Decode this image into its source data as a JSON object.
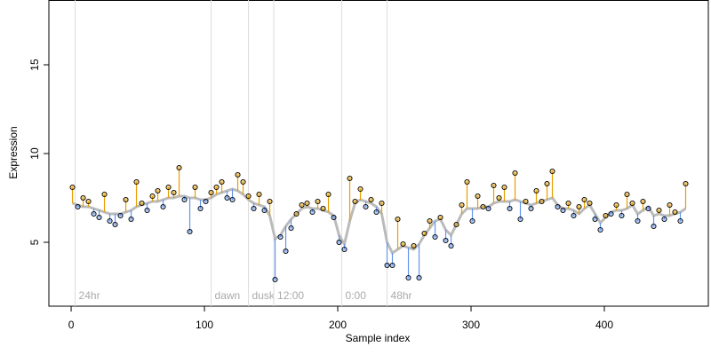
{
  "chart_data": {
    "type": "residual-scatter",
    "x_label": "Sample index",
    "y_label": "Expression",
    "x": [
      1,
      5,
      9,
      13,
      17,
      21,
      25,
      29,
      33,
      37,
      41,
      45,
      49,
      53,
      57,
      61,
      65,
      69,
      73,
      77,
      81,
      85,
      89,
      93,
      97,
      101,
      105,
      109,
      113,
      117,
      121,
      125,
      129,
      133,
      137,
      141,
      145,
      149,
      153,
      157,
      161,
      165,
      169,
      173,
      177,
      181,
      185,
      189,
      193,
      197,
      201,
      205,
      209,
      213,
      217,
      221,
      225,
      229,
      233,
      237,
      241,
      245,
      249,
      253,
      257,
      261,
      265,
      269,
      273,
      277,
      281,
      285,
      289,
      293,
      297,
      301,
      305,
      309,
      313,
      317,
      321,
      325,
      329,
      333,
      337,
      341,
      345,
      349,
      353,
      357,
      361,
      365,
      369,
      373,
      377,
      381,
      385,
      389,
      393,
      397,
      401,
      405,
      409,
      413,
      417,
      421,
      425,
      429,
      433,
      437,
      441,
      445,
      449,
      453,
      457,
      461
    ],
    "values": [
      8.1,
      7.0,
      7.5,
      7.3,
      6.6,
      6.4,
      7.7,
      6.2,
      6.0,
      6.5,
      7.4,
      6.3,
      8.4,
      7.2,
      6.8,
      7.6,
      7.9,
      7.0,
      8.1,
      7.8,
      9.2,
      7.4,
      5.6,
      8.1,
      6.9,
      7.3,
      7.8,
      8.1,
      8.4,
      7.5,
      7.4,
      8.8,
      8.4,
      7.6,
      6.9,
      7.7,
      6.8,
      7.3,
      2.9,
      5.3,
      4.5,
      5.8,
      6.6,
      7.1,
      7.2,
      6.7,
      7.3,
      6.9,
      7.7,
      6.4,
      5.0,
      4.6,
      8.6,
      7.3,
      8.0,
      7.0,
      7.4,
      6.7,
      7.2,
      3.7,
      3.7,
      6.3,
      4.9,
      3.0,
      4.8,
      3.0,
      5.5,
      6.2,
      5.3,
      6.4,
      5.1,
      4.8,
      6.0,
      7.1,
      8.4,
      6.2,
      7.6,
      7.0,
      6.9,
      8.2,
      7.5,
      8.1,
      6.9,
      8.9,
      6.3,
      7.3,
      6.9,
      7.9,
      7.3,
      8.3,
      9.0,
      7.0,
      6.8,
      7.2,
      6.5,
      7.0,
      7.4,
      7.2,
      6.3,
      5.7,
      6.5,
      6.6,
      7.1,
      6.5,
      7.7,
      7.2,
      6.2,
      7.3,
      6.9,
      5.9,
      6.8,
      6.3,
      7.1,
      6.7,
      6.2,
      8.3
    ],
    "fit": [
      7.2,
      7.1,
      7.0,
      7.0,
      6.9,
      6.8,
      6.7,
      6.6,
      6.6,
      6.6,
      6.7,
      6.8,
      7.0,
      7.1,
      7.2,
      7.3,
      7.3,
      7.4,
      7.5,
      7.5,
      7.6,
      7.6,
      7.5,
      7.5,
      7.4,
      7.4,
      7.5,
      7.7,
      7.8,
      7.9,
      8.0,
      7.9,
      7.7,
      7.4,
      7.2,
      7.1,
      7.0,
      6.5,
      5.2,
      5.4,
      5.9,
      6.3,
      6.6,
      6.9,
      7.0,
      6.9,
      6.9,
      6.8,
      6.7,
      6.5,
      5.4,
      4.9,
      6.2,
      7.2,
      7.4,
      7.3,
      7.2,
      7.0,
      6.6,
      5.0,
      4.4,
      4.6,
      4.8,
      4.7,
      4.6,
      4.9,
      5.4,
      5.8,
      6.2,
      6.3,
      5.7,
      5.4,
      6.0,
      6.6,
      6.9,
      6.9,
      6.9,
      7.0,
      7.0,
      7.2,
      7.3,
      7.3,
      7.3,
      7.4,
      7.3,
      7.2,
      7.1,
      7.2,
      7.3,
      7.4,
      7.5,
      7.1,
      6.9,
      6.9,
      6.8,
      6.6,
      6.9,
      7.1,
      6.6,
      6.1,
      6.4,
      6.7,
      6.8,
      6.8,
      6.9,
      7.1,
      6.6,
      6.8,
      7.0,
      6.5,
      6.6,
      6.5,
      6.5,
      6.6,
      6.7,
      6.9
    ],
    "above_color": "#e69f00",
    "below_color": "#6495ed",
    "fit_color": "#bbbbbb",
    "markers": [
      {
        "x": 3,
        "label": "24hr"
      },
      {
        "x": 105,
        "label": "dawn"
      },
      {
        "x": 133,
        "label": "dusk"
      },
      {
        "x": 152,
        "label": "12:00"
      },
      {
        "x": 203,
        "label": "0:00"
      },
      {
        "x": 237,
        "label": "48hr"
      }
    ],
    "xlim": [
      -16.7,
      478
    ],
    "ylim": [
      1.4,
      18.65
    ],
    "xticks": [
      0,
      100,
      200,
      300,
      400
    ],
    "yticks": [
      5,
      10,
      15
    ]
  }
}
